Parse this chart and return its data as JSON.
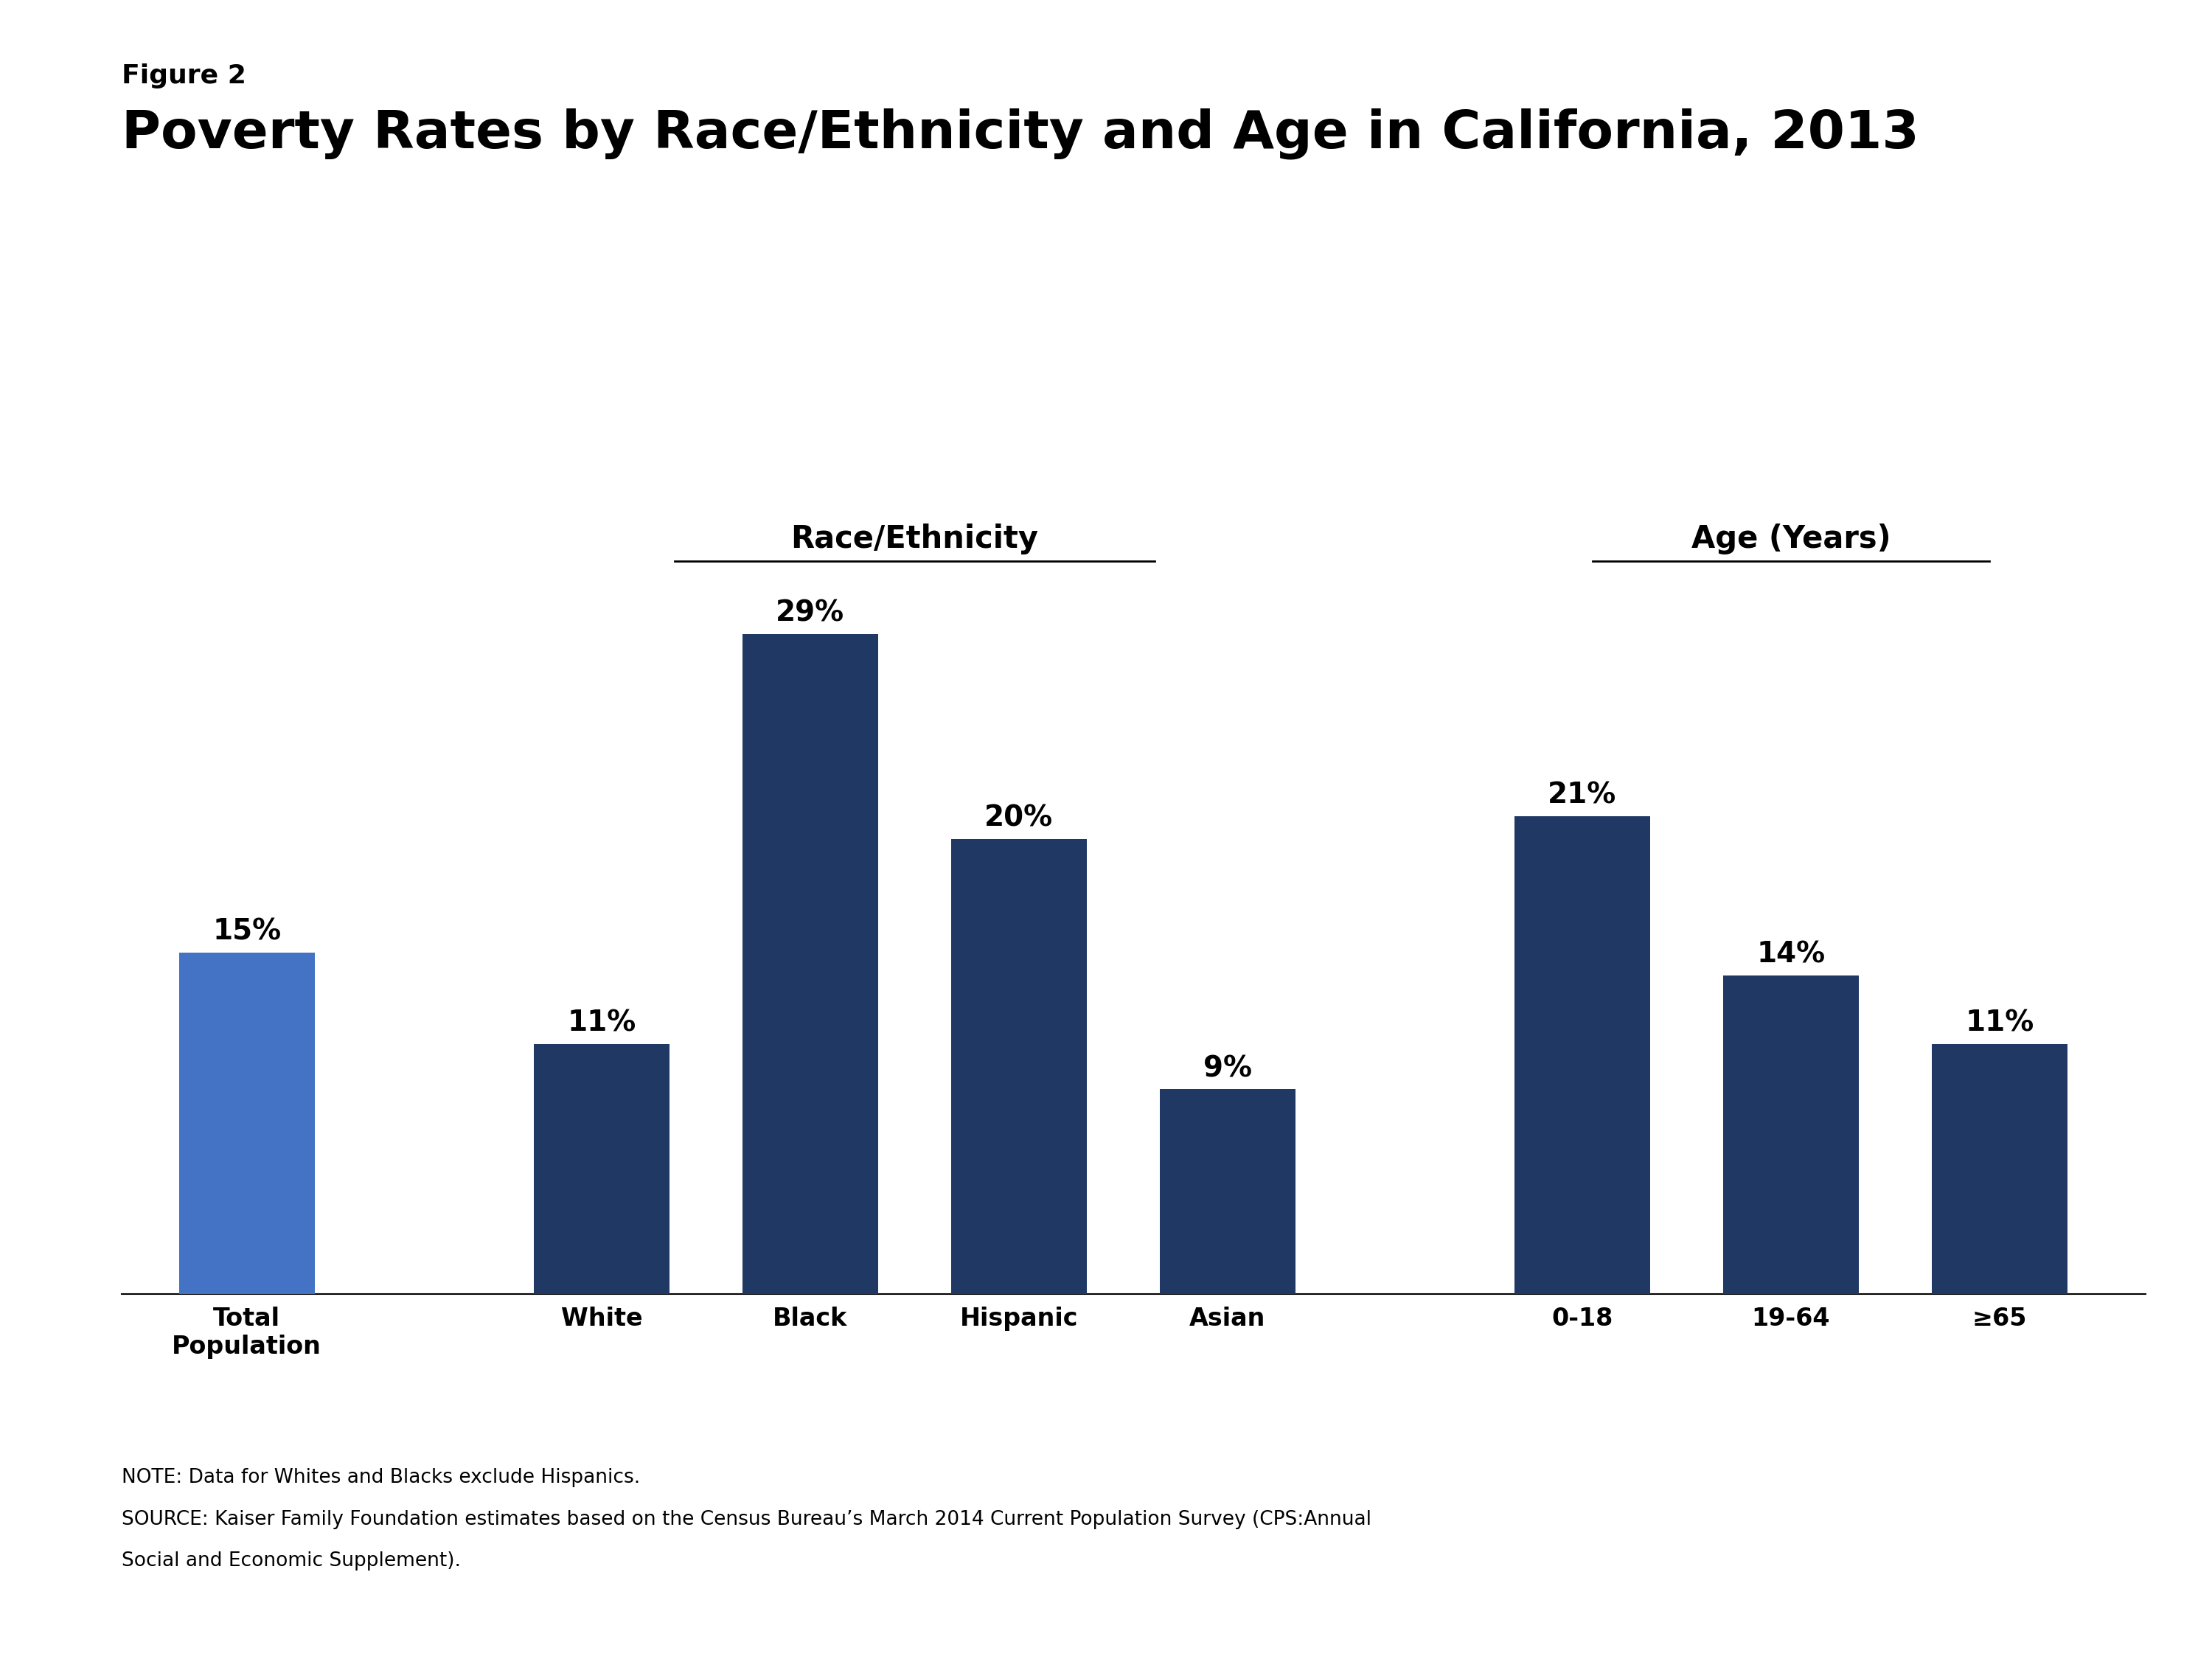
{
  "figure_label": "Figure 2",
  "title": "Poverty Rates by Race/Ethnicity and Age in California, 2013",
  "bars": [
    {
      "label": "Total\nPopulation",
      "value": 15,
      "color": "#4472C4",
      "group": "total"
    },
    {
      "label": "White",
      "value": 11,
      "color": "#1F3864",
      "group": "race"
    },
    {
      "label": "Black",
      "value": 29,
      "color": "#1F3864",
      "group": "race"
    },
    {
      "label": "Hispanic",
      "value": 20,
      "color": "#1F3864",
      "group": "race"
    },
    {
      "label": "Asian",
      "value": 9,
      "color": "#1F3864",
      "group": "race"
    },
    {
      "label": "0-18",
      "value": 21,
      "color": "#1F3864",
      "group": "age"
    },
    {
      "label": "19-64",
      "value": 14,
      "color": "#1F3864",
      "group": "age"
    },
    {
      "label": "≥65",
      "value": 11,
      "color": "#1F3864",
      "group": "age"
    }
  ],
  "race_header": "Race/Ethnicity",
  "age_header": "Age (Years)",
  "note_line1": "NOTE: Data for Whites and Blacks exclude Hispanics.",
  "note_line2": "SOURCE: Kaiser Family Foundation estimates based on the Census Bureau’s March 2014 Current Population Survey (CPS:Annual",
  "note_line3": "Social and Economic Supplement).",
  "kaiser_logo_color": "#1F3864",
  "background_color": "#FFFFFF",
  "bar_width": 0.65,
  "ylim": [
    0,
    35
  ],
  "value_fontsize": 28,
  "label_fontsize": 24,
  "title_fontsize": 52,
  "figure_label_fontsize": 26,
  "header_fontsize": 30,
  "note_fontsize": 19,
  "positions": [
    0,
    1.7,
    2.7,
    3.7,
    4.7,
    6.4,
    7.4,
    8.4
  ]
}
